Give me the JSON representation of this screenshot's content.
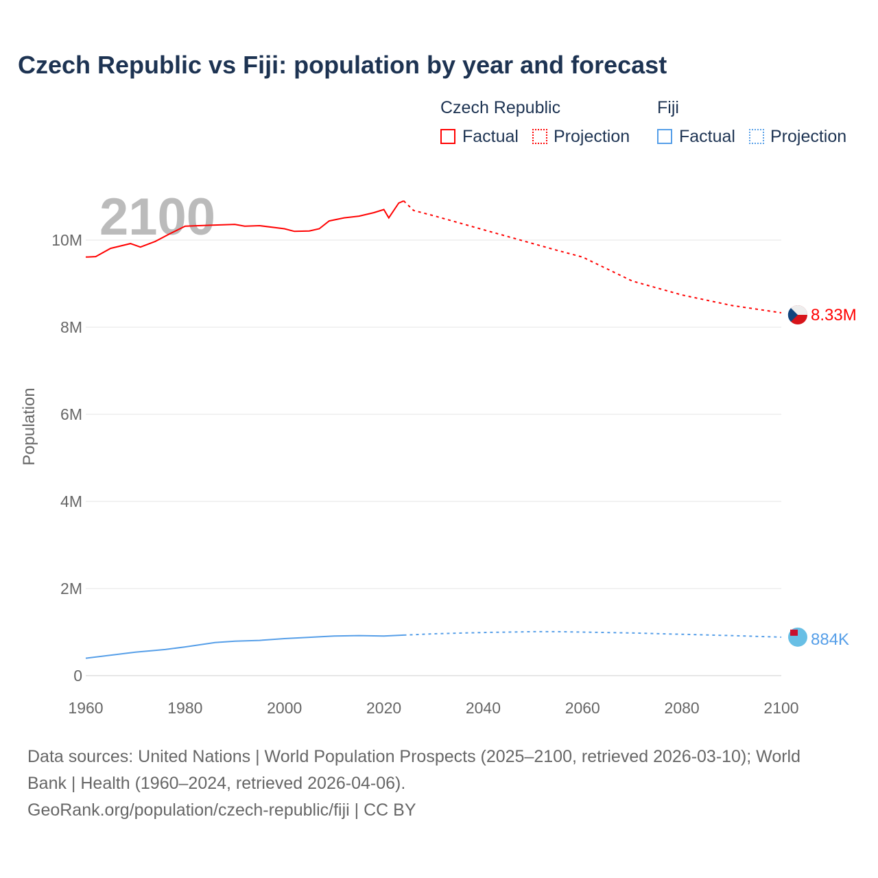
{
  "title": "Czech Republic vs Fiji: population by year and forecast",
  "legend": {
    "groups": [
      {
        "name": "Czech Republic",
        "factual": "Factual",
        "projection": "Projection",
        "color": "#ff0000"
      },
      {
        "name": "Fiji",
        "factual": "Factual",
        "projection": "Projection",
        "color": "#559ee8"
      }
    ]
  },
  "year_label": "2100",
  "footer": {
    "line1": "Data sources: United Nations | World Population Prospects (2025–2100, retrieved 2026-03-10); World",
    "line2": "Bank | Health (1960–2024, retrieved 2026-04-06).",
    "line3": "GeoRank.org/population/czech-republic/fiji | CC BY"
  },
  "chart_data": {
    "type": "line",
    "title": "Czech Republic vs Fiji: population by year and forecast",
    "xlabel": "",
    "ylabel": "Population",
    "xlim": [
      1960,
      2100
    ],
    "ylim": [
      0,
      11000000
    ],
    "xticks": [
      1960,
      1980,
      2000,
      2020,
      2040,
      2060,
      2080,
      2100
    ],
    "xtick_labels": [
      "1960",
      "1980",
      "2000",
      "2020",
      "2040",
      "2060",
      "2080",
      "2100"
    ],
    "yticks": [
      0,
      2000000,
      4000000,
      6000000,
      8000000,
      10000000
    ],
    "ytick_labels": [
      "0",
      "2M",
      "4M",
      "6M",
      "8M",
      "10M"
    ],
    "grid": true,
    "series": [
      {
        "name": "Czech Republic Factual",
        "color": "#ff0000",
        "dashed": false,
        "x": [
          1960,
          1962,
          1965,
          1969,
          1971,
          1974,
          1977,
          1980,
          1985,
          1990,
          1992,
          1995,
          2000,
          2002,
          2005,
          2007,
          2009,
          2012,
          2015,
          2018,
          2020,
          2021,
          2023,
          2024
        ],
        "y": [
          9610000,
          9620000,
          9810000,
          9920000,
          9840000,
          9970000,
          10150000,
          10320000,
          10340000,
          10360000,
          10320000,
          10330000,
          10260000,
          10200000,
          10210000,
          10260000,
          10440000,
          10510000,
          10550000,
          10630000,
          10700000,
          10510000,
          10850000,
          10900000
        ]
      },
      {
        "name": "Czech Republic Projection",
        "color": "#ff0000",
        "dashed": true,
        "x": [
          2024,
          2026,
          2030,
          2040,
          2050,
          2055,
          2060,
          2070,
          2080,
          2090,
          2100
        ],
        "y": [
          10900000,
          10680000,
          10560000,
          10240000,
          9920000,
          9760000,
          9610000,
          9060000,
          8740000,
          8500000,
          8330000
        ]
      },
      {
        "name": "Fiji Factual",
        "color": "#559ee8",
        "dashed": false,
        "x": [
          1960,
          1970,
          1976,
          1980,
          1986,
          1990,
          1995,
          2000,
          2005,
          2010,
          2015,
          2020,
          2024
        ],
        "y": [
          400000,
          540000,
          600000,
          660000,
          760000,
          790000,
          810000,
          850000,
          880000,
          910000,
          920000,
          910000,
          930000
        ]
      },
      {
        "name": "Fiji Projection",
        "color": "#559ee8",
        "dashed": true,
        "x": [
          2024,
          2030,
          2040,
          2050,
          2055,
          2060,
          2070,
          2080,
          2090,
          2100
        ],
        "y": [
          930000,
          960000,
          990000,
          1010000,
          1010000,
          1000000,
          980000,
          950000,
          920000,
          884000
        ]
      }
    ],
    "end_labels": [
      {
        "series": "Czech Republic",
        "text": "8.33M",
        "color": "#ff0000"
      },
      {
        "series": "Fiji",
        "text": "884K",
        "color": "#559ee8"
      }
    ]
  }
}
